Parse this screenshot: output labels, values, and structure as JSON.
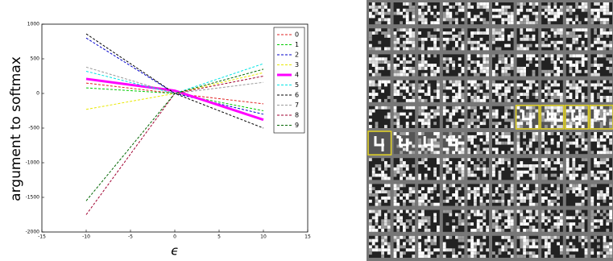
{
  "chart_data": {
    "type": "line",
    "x_label": "ϵ",
    "y_label": "argument to softmax",
    "xlim": [
      -15,
      15
    ],
    "xticks": [
      -15,
      -10,
      -5,
      0,
      5,
      10,
      15
    ],
    "ylim": [
      -2000,
      1000
    ],
    "yticks": [
      -2000,
      -1500,
      -1000,
      -500,
      0,
      500,
      1000
    ],
    "x": [
      -10,
      0,
      10
    ],
    "legend": "upper right",
    "series": [
      {
        "name": "0",
        "color": "#e02020",
        "linestyle": "dashed",
        "linewidth": 1,
        "values": [
          150,
          0,
          -150
        ]
      },
      {
        "name": "1",
        "color": "#00cc00",
        "linestyle": "dashed",
        "linewidth": 1,
        "values": [
          80,
          0,
          -250
        ]
      },
      {
        "name": "2",
        "color": "#0000cc",
        "linestyle": "dashed",
        "linewidth": 1,
        "values": [
          800,
          0,
          -300
        ]
      },
      {
        "name": "3",
        "color": "#e8e800",
        "linestyle": "dashed",
        "linewidth": 1,
        "values": [
          -230,
          0,
          300
        ]
      },
      {
        "name": "4",
        "color": "#ff00ff",
        "linestyle": "solid",
        "linewidth": 3,
        "values": [
          210,
          40,
          -380
        ]
      },
      {
        "name": "5",
        "color": "#00e5e5",
        "linestyle": "dashed",
        "linewidth": 1,
        "values": [
          320,
          0,
          430
        ]
      },
      {
        "name": "6",
        "color": "#000000",
        "linestyle": "dashed",
        "linewidth": 1,
        "values": [
          860,
          0,
          -500
        ]
      },
      {
        "name": "7",
        "color": "#999999",
        "linestyle": "dashed",
        "linewidth": 1,
        "values": [
          380,
          0,
          160
        ]
      },
      {
        "name": "8",
        "color": "#a00030",
        "linestyle": "dashed",
        "linewidth": 1,
        "values": [
          -1750,
          0,
          250
        ]
      },
      {
        "name": "9",
        "color": "#006600",
        "linestyle": "dashed",
        "linewidth": 1,
        "values": [
          -1550,
          0,
          350
        ]
      }
    ]
  }
}
